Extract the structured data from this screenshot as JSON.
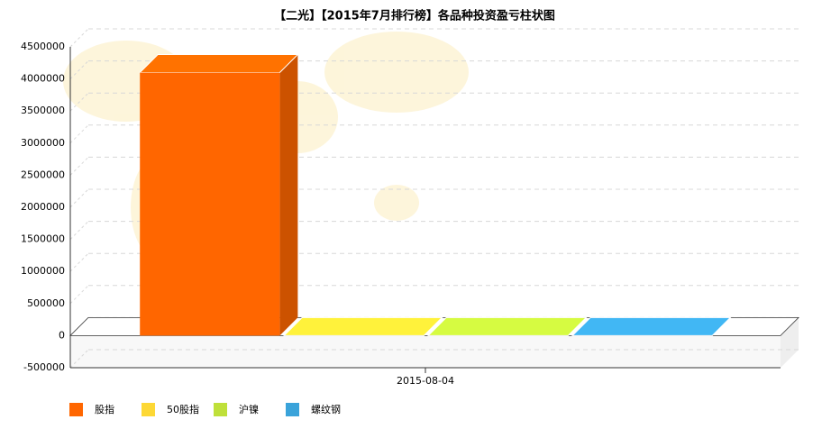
{
  "chart_data": {
    "type": "bar3d",
    "title": "【二光】【2015年7月排行榜】各品种投资盈亏柱状图",
    "categories": [
      "2015-08-04"
    ],
    "series": [
      {
        "name": "股指",
        "color": "#ff6600",
        "values": [
          4100000
        ]
      },
      {
        "name": "50股指",
        "color": "#fdd835",
        "values": [
          0
        ]
      },
      {
        "name": "沪镍",
        "color": "#bfe03a",
        "values": [
          0
        ]
      },
      {
        "name": "螺纹钢",
        "color": "#3aa3da",
        "values": [
          0
        ]
      }
    ],
    "ylim": [
      -500000,
      4500000
    ],
    "yticks": [
      -500000,
      0,
      500000,
      1000000,
      1500000,
      2000000,
      2500000,
      3000000,
      3500000,
      4000000,
      4500000
    ],
    "grid": true
  }
}
